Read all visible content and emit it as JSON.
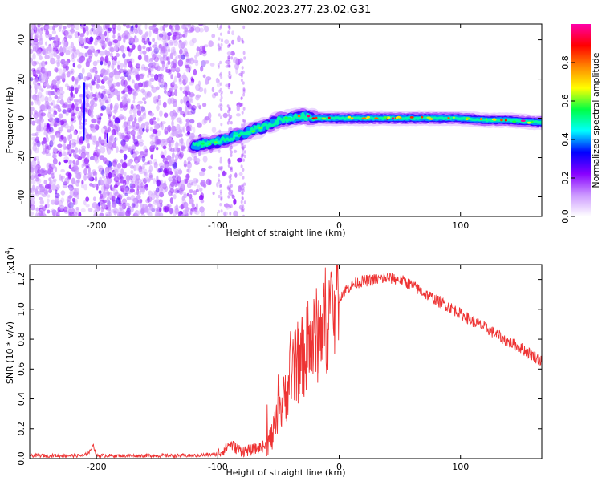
{
  "title": "GN02.2023.277.23.02.G31",
  "chart_data": [
    {
      "type": "heatmap",
      "xlabel": "Height of straight line (km)",
      "ylabel": "Frequency (Hz)",
      "xlim": [
        -255,
        167
      ],
      "ylim": [
        -50,
        48
      ],
      "xticks": [
        -200,
        -100,
        0,
        100
      ],
      "yticks": [
        -40,
        -20,
        0,
        20,
        40
      ],
      "ridge": {
        "x": [
          -120,
          -110,
          -100,
          -90,
          -80,
          -70,
          -60,
          -50,
          -40,
          -30,
          -20,
          -10,
          0,
          20,
          40,
          60,
          80,
          100,
          120,
          140,
          160,
          167
        ],
        "frequency": [
          -14,
          -13,
          -12,
          -10,
          -8,
          -6,
          -4,
          -1,
          0,
          1,
          0,
          0,
          0,
          0,
          0,
          0,
          0,
          0,
          -1,
          -1,
          -2,
          -2
        ]
      },
      "colorbar": {
        "label": "Normalized spectral amplitude",
        "range": [
          0,
          1
        ],
        "ticks": [
          "0.0",
          "0.2",
          "0.4",
          "0.6",
          "0.8"
        ],
        "colors": [
          "#ffffff",
          "#cc99ff",
          "#8800ff",
          "#0000ff",
          "#00ffff",
          "#00ff44",
          "#ffff00",
          "#ff8800",
          "#ff0000",
          "#ff00aa"
        ]
      },
      "grid": false
    },
    {
      "type": "line",
      "xlabel": "Height of straight line (km)",
      "ylabel": "SNR (10 * v/v)",
      "scale_label": "(x10",
      "scale_exponent": "4",
      "scale_suffix": ")",
      "xlim": [
        -255,
        167
      ],
      "ylim": [
        0,
        1.3
      ],
      "xticks": [
        -200,
        -100,
        0,
        100
      ],
      "yticks": [
        "0.0",
        "0.2",
        "0.4",
        "0.6",
        "0.8",
        "1.0",
        "1.2"
      ],
      "color": "#ee3333",
      "series": [
        {
          "x": [
            -255,
            -230,
            -210,
            -205,
            -203,
            -200,
            -180,
            -150,
            -120,
            -100,
            -95,
            -90,
            -85,
            -80,
            -70,
            -60,
            -55,
            -50,
            -45,
            -40,
            -35,
            -30,
            -25,
            -20,
            -15,
            -10,
            -5,
            0,
            5,
            10,
            15,
            20,
            30,
            40,
            50,
            60,
            70,
            80,
            90,
            100,
            110,
            120,
            130,
            140,
            150,
            160,
            167
          ],
          "values": [
            0.02,
            0.02,
            0.02,
            0.05,
            0.1,
            0.02,
            0.02,
            0.02,
            0.02,
            0.03,
            0.06,
            0.1,
            0.07,
            0.05,
            0.06,
            0.09,
            0.15,
            0.28,
            0.4,
            0.55,
            0.62,
            0.68,
            0.75,
            0.8,
            0.88,
            0.95,
            1.02,
            1.08,
            1.13,
            1.16,
            1.18,
            1.19,
            1.2,
            1.21,
            1.2,
            1.16,
            1.11,
            1.06,
            1.02,
            0.97,
            0.92,
            0.88,
            0.83,
            0.78,
            0.74,
            0.69,
            0.65
          ]
        }
      ],
      "grid": false
    }
  ]
}
